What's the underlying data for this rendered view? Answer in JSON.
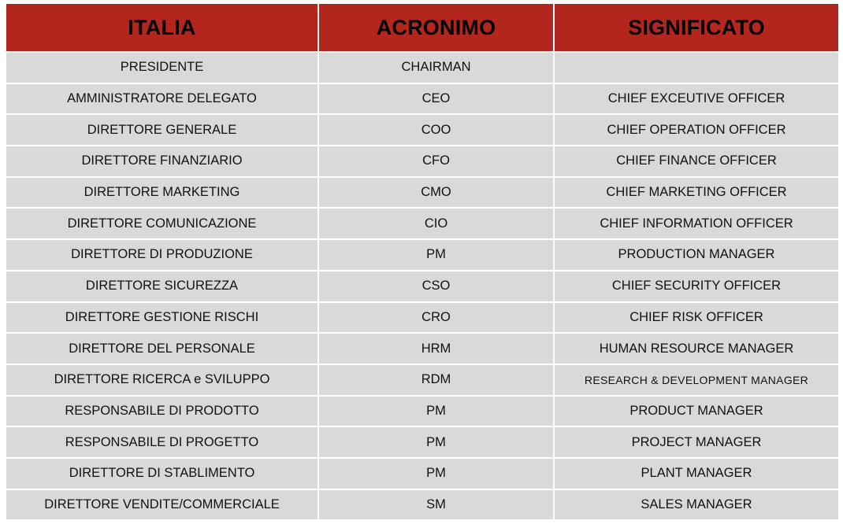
{
  "table": {
    "headers": [
      "ITALIA",
      "ACRONIMO",
      "SIGNIFICATO"
    ],
    "rows": [
      [
        "PRESIDENTE",
        "CHAIRMAN",
        ""
      ],
      [
        "AMMINISTRATORE DELEGATO",
        "CEO",
        "CHIEF EXCEUTIVE OFFICER"
      ],
      [
        "DIRETTORE GENERALE",
        "COO",
        "CHIEF OPERATION OFFICER"
      ],
      [
        "DIRETTORE FINANZIARIO",
        "CFO",
        "CHIEF FINANCE OFFICER"
      ],
      [
        "DIRETTORE MARKETING",
        "CMO",
        "CHIEF MARKETING OFFICER"
      ],
      [
        "DIRETTORE COMUNICAZIONE",
        "CIO",
        "CHIEF INFORMATION OFFICER"
      ],
      [
        "DIRETTORE DI PRODUZIONE",
        "PM",
        "PRODUCTION MANAGER"
      ],
      [
        "DIRETTORE SICUREZZA",
        "CSO",
        "CHIEF SECURITY OFFICER"
      ],
      [
        "DIRETTORE GESTIONE RISCHI",
        "CRO",
        "CHIEF RISK OFFICER"
      ],
      [
        "DIRETTORE DEL PERSONALE",
        "HRM",
        "HUMAN RESOURCE MANAGER"
      ],
      [
        "DIRETTORE RICERCA e SVILUPPO",
        "RDM",
        "RESEARCH & DEVELOPMENT MANAGER"
      ],
      [
        "RESPONSABILE DI PRODOTTO",
        "PM",
        "PRODUCT MANAGER"
      ],
      [
        "RESPONSABILE DI PROGETTO",
        "PM",
        "PROJECT MANAGER"
      ],
      [
        "DIRETTORE DI STABLIMENTO",
        "PM",
        "PLANT MANAGER"
      ],
      [
        "DIRETTORE VENDITE/COMMERCIALE",
        "SM",
        "SALES MANAGER"
      ]
    ]
  },
  "colors": {
    "header_background": "#b3261e",
    "header_text": "#000000",
    "cell_background": "#d9d9d9",
    "grid_lines": "#ffffff"
  }
}
